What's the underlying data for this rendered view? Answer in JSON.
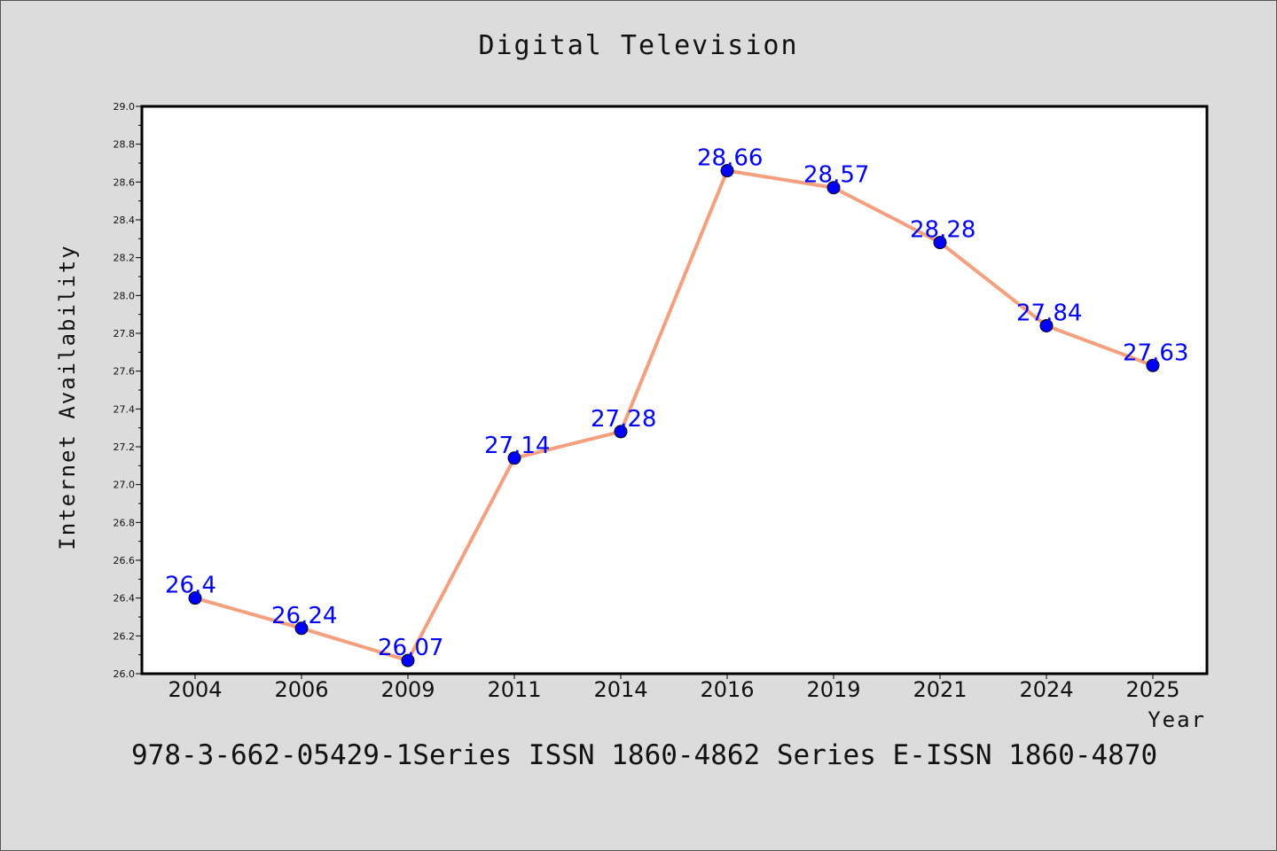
{
  "title": "Digital Television",
  "footer": "978-3-662-05429-1Series ISSN 1860-4862 Series E-ISSN 1860-4870",
  "colors": {
    "line": "#f4a07e",
    "marker": "#0000ff",
    "data_label": "#0000ff",
    "background": "#dcdcdc",
    "plot_background": "#ffffff"
  },
  "chart_data": {
    "type": "line",
    "title": "Digital Television",
    "xlabel": "Year",
    "ylabel": "Internet Availability",
    "categories": [
      "2004",
      "2006",
      "2009",
      "2011",
      "2014",
      "2016",
      "2019",
      "2021",
      "2024",
      "2025"
    ],
    "series": [
      {
        "values": [
          26.4,
          26.24,
          26.07,
          27.14,
          27.28,
          28.66,
          28.57,
          28.28,
          27.84,
          27.63
        ]
      }
    ],
    "data_labels": [
      "26.4",
      "26.24",
      "26.07",
      "27.14",
      "27.28",
      "28.66",
      "28.57",
      "28.28",
      "27.84",
      "27.63"
    ],
    "ylim": [
      26.0,
      29.0
    ],
    "yticks": [
      "26.0",
      "26.2",
      "26.4",
      "26.6",
      "26.8",
      "27.0",
      "27.2",
      "27.4",
      "27.6",
      "27.8",
      "28.0",
      "28.2",
      "28.4",
      "28.6",
      "28.8",
      "29.0"
    ],
    "grid": false,
    "legend": "none"
  }
}
